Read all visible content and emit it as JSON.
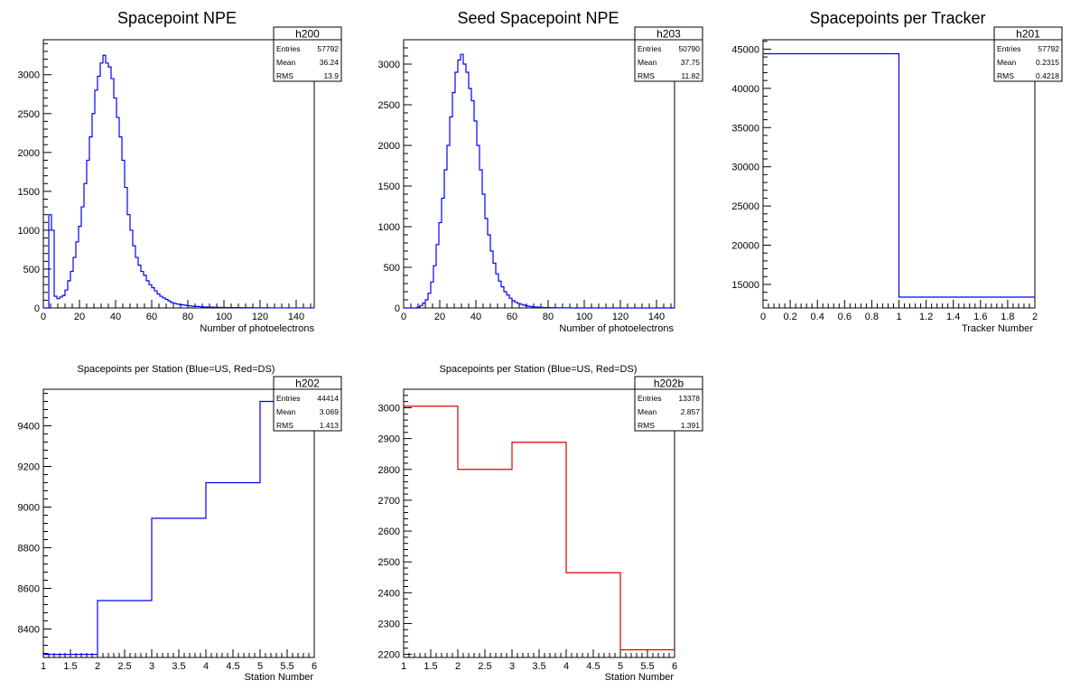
{
  "chart_data": [
    {
      "type": "histogram",
      "title": "Spacepoint NPE",
      "xlabel": "Number of photoelectrons",
      "ylabel": "",
      "xlim": [
        0,
        150
      ],
      "ylim": [
        0,
        3450
      ],
      "xticks": [
        0,
        20,
        40,
        60,
        80,
        100,
        120,
        140
      ],
      "yticks": [
        0,
        500,
        1000,
        1500,
        2000,
        2500,
        3000
      ],
      "bin_width": 1.5,
      "bin_start": 0,
      "color": "#0000ff",
      "values": [
        0,
        0,
        1200,
        1000,
        150,
        120,
        140,
        160,
        230,
        350,
        470,
        650,
        850,
        1050,
        1300,
        1600,
        1900,
        2200,
        2500,
        2800,
        2980,
        3150,
        3250,
        3150,
        3100,
        2950,
        2700,
        2450,
        2200,
        1900,
        1550,
        1200,
        1000,
        800,
        650,
        550,
        470,
        420,
        350,
        300,
        260,
        220,
        180,
        150,
        130,
        110,
        90,
        70,
        60,
        50,
        45,
        40,
        35,
        30,
        25,
        20,
        20,
        18,
        15,
        12,
        12,
        10,
        10,
        8,
        8,
        6,
        6,
        5,
        5,
        5,
        4,
        4,
        4,
        3,
        3,
        3,
        3,
        2,
        2,
        2,
        2,
        2,
        2,
        2,
        1,
        1,
        1,
        1,
        1,
        1,
        1,
        1,
        1,
        1,
        1,
        1,
        1,
        1,
        1,
        1
      ],
      "stats": {
        "name": "h200",
        "entries": "57792",
        "mean": "36.24",
        "rms": "13.9"
      }
    },
    {
      "type": "histogram",
      "title": "Seed Spacepoint NPE",
      "xlabel": "Number of photoelectrons",
      "ylabel": "",
      "xlim": [
        0,
        150
      ],
      "ylim": [
        0,
        3300
      ],
      "xticks": [
        0,
        20,
        40,
        60,
        80,
        100,
        120,
        140
      ],
      "yticks": [
        0,
        500,
        1000,
        1500,
        2000,
        2500,
        3000
      ],
      "bin_width": 1.5,
      "bin_start": 0,
      "color": "#0000ff",
      "values": [
        0,
        0,
        0,
        0,
        0,
        10,
        30,
        60,
        100,
        180,
        320,
        520,
        780,
        1050,
        1350,
        1700,
        2000,
        2350,
        2650,
        2900,
        3050,
        3120,
        3000,
        2900,
        2700,
        2550,
        2300,
        2000,
        1700,
        1400,
        1100,
        900,
        700,
        550,
        420,
        330,
        260,
        200,
        160,
        120,
        90,
        70,
        55,
        45,
        35,
        25,
        20,
        15,
        12,
        10,
        8,
        6,
        5,
        4,
        3,
        3,
        2,
        2,
        1,
        1,
        1,
        1,
        0,
        0,
        0,
        0,
        0,
        0,
        0,
        0,
        0,
        0,
        0,
        0,
        0,
        0,
        0,
        0,
        0,
        0,
        0,
        0,
        0,
        0,
        0,
        0,
        0,
        0,
        0,
        0,
        0,
        0,
        0,
        0,
        0,
        0,
        0,
        0,
        0,
        0
      ],
      "stats": {
        "name": "h203",
        "entries": "50790",
        "mean": "37.75",
        "rms": "11.82"
      }
    },
    {
      "type": "histogram",
      "title": "Spacepoints per Tracker",
      "xlabel": "Tracker Number",
      "ylabel": "",
      "xlim": [
        0,
        2
      ],
      "ylim": [
        12000,
        46200
      ],
      "xticks": [
        0,
        0.2,
        0.4,
        0.6,
        0.8,
        1,
        1.2,
        1.4,
        1.6,
        1.8,
        2
      ],
      "xticklabels": [
        "0",
        "0.2",
        "0.4",
        "0.6",
        "0.8",
        "1",
        "1.2",
        "1.4",
        "1.6",
        "1.8",
        "2"
      ],
      "yticks": [
        15000,
        20000,
        25000,
        30000,
        35000,
        40000,
        45000
      ],
      "bin_width": 1,
      "bin_start": 0,
      "color": "#0000ff",
      "values": [
        44414,
        13378
      ],
      "stats": {
        "name": "h201",
        "entries": "57792",
        "mean": "0.2315",
        "rms": "0.4218"
      }
    },
    {
      "type": "histogram",
      "title": "Spacepoints per Station (Blue=US, Red=DS)",
      "xlabel": "Station Number",
      "ylabel": "",
      "xlim": [
        1,
        6
      ],
      "ylim": [
        8260,
        9580
      ],
      "xticks": [
        1,
        1.5,
        2,
        2.5,
        3,
        3.5,
        4,
        4.5,
        5,
        5.5,
        6
      ],
      "xticklabels": [
        "1",
        "1.5",
        "2",
        "2.5",
        "3",
        "3.5",
        "4",
        "4.5",
        "5",
        "5.5",
        "6"
      ],
      "yticks": [
        8400,
        8600,
        8800,
        9000,
        9200,
        9400
      ],
      "bin_width": 1,
      "bin_start": 1,
      "color": "#0000ff",
      "values": [
        8275,
        8540,
        8945,
        9120,
        9520
      ],
      "stats": {
        "name": "h202",
        "entries": "44414",
        "mean": "3.069",
        "rms": "1.413"
      }
    },
    {
      "type": "histogram",
      "title": "Spacepoints per Station (Blue=US, Red=DS)",
      "xlabel": "Station Number",
      "ylabel": "",
      "xlim": [
        1,
        6
      ],
      "ylim": [
        2190,
        3060
      ],
      "xticks": [
        1,
        1.5,
        2,
        2.5,
        3,
        3.5,
        4,
        4.5,
        5,
        5.5,
        6
      ],
      "xticklabels": [
        "1",
        "1.5",
        "2",
        "2.5",
        "3",
        "3.5",
        "4",
        "4.5",
        "5",
        "5.5",
        "6"
      ],
      "yticks": [
        2200,
        2300,
        2400,
        2500,
        2600,
        2700,
        2800,
        2900,
        3000
      ],
      "bin_width": 1,
      "bin_start": 1,
      "color": "#dd0000",
      "values": [
        3005,
        2800,
        2888,
        2465,
        2215
      ],
      "stats": {
        "name": "h202b",
        "entries": "13378",
        "mean": "2.857",
        "rms": "1.391"
      }
    }
  ],
  "labels": {
    "entries": "Entries",
    "mean": "Mean",
    "rms": "RMS"
  }
}
